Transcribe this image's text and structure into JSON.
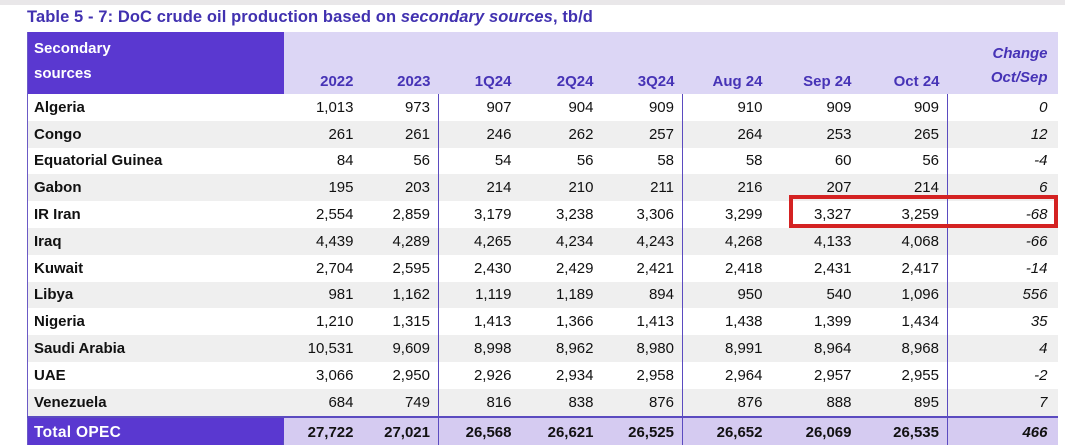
{
  "title": {
    "prefix": "Table 5 - 7: DoC crude oil production based on ",
    "italic_part": "secondary sources",
    "suffix": ", tb/d"
  },
  "header": {
    "row_label_line1": "Secondary",
    "row_label_line2": "sources",
    "columns": [
      "2022",
      "2023",
      "1Q24",
      "2Q24",
      "3Q24",
      "Aug 24",
      "Sep 24",
      "Oct 24"
    ],
    "change_line1": "Change",
    "change_line2": "Oct/Sep"
  },
  "rows": [
    {
      "name": "Algeria",
      "values": [
        "1,013",
        "973",
        "907",
        "904",
        "909",
        "910",
        "909",
        "909",
        "0"
      ]
    },
    {
      "name": "Congo",
      "values": [
        "261",
        "261",
        "246",
        "262",
        "257",
        "264",
        "253",
        "265",
        "12"
      ]
    },
    {
      "name": "Equatorial Guinea",
      "values": [
        "84",
        "56",
        "54",
        "56",
        "58",
        "58",
        "60",
        "56",
        "-4"
      ]
    },
    {
      "name": "Gabon",
      "values": [
        "195",
        "203",
        "214",
        "210",
        "211",
        "216",
        "207",
        "214",
        "6"
      ]
    },
    {
      "name": "IR Iran",
      "values": [
        "2,554",
        "2,859",
        "3,179",
        "3,238",
        "3,306",
        "3,299",
        "3,327",
        "3,259",
        "-68"
      ],
      "highlighted": true
    },
    {
      "name": "Iraq",
      "values": [
        "4,439",
        "4,289",
        "4,265",
        "4,234",
        "4,243",
        "4,268",
        "4,133",
        "4,068",
        "-66"
      ]
    },
    {
      "name": "Kuwait",
      "values": [
        "2,704",
        "2,595",
        "2,430",
        "2,429",
        "2,421",
        "2,418",
        "2,431",
        "2,417",
        "-14"
      ]
    },
    {
      "name": "Libya",
      "values": [
        "981",
        "1,162",
        "1,119",
        "1,189",
        "894",
        "950",
        "540",
        "1,096",
        "556"
      ]
    },
    {
      "name": "Nigeria",
      "values": [
        "1,210",
        "1,315",
        "1,413",
        "1,366",
        "1,413",
        "1,438",
        "1,399",
        "1,434",
        "35"
      ]
    },
    {
      "name": "Saudi Arabia",
      "values": [
        "10,531",
        "9,609",
        "8,998",
        "8,962",
        "8,980",
        "8,991",
        "8,964",
        "8,968",
        "4"
      ]
    },
    {
      "name": "UAE",
      "values": [
        "3,066",
        "2,950",
        "2,926",
        "2,934",
        "2,958",
        "2,964",
        "2,957",
        "2,955",
        "-2"
      ]
    },
    {
      "name": "Venezuela",
      "values": [
        "684",
        "749",
        "816",
        "838",
        "876",
        "876",
        "888",
        "895",
        "7"
      ]
    }
  ],
  "total": {
    "name": "Total  OPEC",
    "values": [
      "27,722",
      "27,021",
      "26,568",
      "26,621",
      "26,525",
      "26,652",
      "26,069",
      "26,535",
      "466"
    ]
  },
  "annotation": {
    "type": "red-highlight-box",
    "target": "IR Iran: Sep 24, Oct 24, Change Oct/Sep",
    "color": "#d42222"
  },
  "colors": {
    "header_dark_purple": "#5a38d0",
    "header_light_purple": "#dcd6f5",
    "total_row_purple": "#d5cbf1",
    "grid_line_purple": "#5b4bc0",
    "stripe_gray": "#efefef",
    "title_text": "#4131b0",
    "highlight_red": "#d42222"
  }
}
